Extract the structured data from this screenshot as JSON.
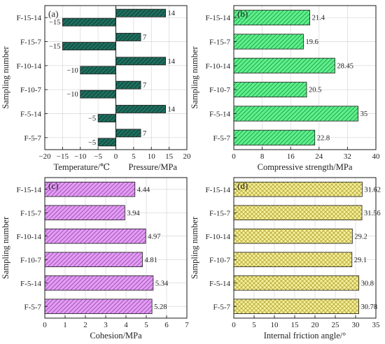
{
  "chart_data": [
    {
      "type": "bar",
      "panel_label": "(a)",
      "orientation": "horizontal",
      "categories": [
        "F-5-7",
        "F-5-14",
        "F-10-7",
        "F-10-14",
        "F-15-7",
        "F-15-14"
      ],
      "series": [
        {
          "name": "Temperature",
          "values": [
            -5,
            -5,
            -10,
            -10,
            -15,
            -15
          ]
        },
        {
          "name": "Pressure",
          "values": [
            7,
            14,
            7,
            14,
            7,
            14
          ]
        }
      ],
      "value_labels": {
        "Temperature": [
          "−5",
          "−5",
          "−10",
          "−10",
          "−15",
          "−15"
        ],
        "Pressure": [
          "7",
          "14",
          "7",
          "14",
          "7",
          "14"
        ]
      },
      "xticks": [
        "−20",
        "−15",
        "−10",
        "−5",
        "0",
        "5",
        "10",
        "15",
        "20"
      ],
      "xlabel_left": "Temperature/℃",
      "xlabel_right": "Pressure/MPa",
      "ylabel": "Sampling number",
      "xlim": [
        -20,
        20
      ],
      "grid": true,
      "colors": {
        "fill": "#1e6e5e",
        "hatch": "#0d3a30"
      }
    },
    {
      "type": "bar",
      "panel_label": "(b)",
      "orientation": "horizontal",
      "categories": [
        "F-5-7",
        "F-5-14",
        "F-10-7",
        "F-10-14",
        "F-15-7",
        "F-15-14"
      ],
      "values": [
        22.8,
        35,
        20.5,
        28.45,
        19.6,
        21.4
      ],
      "value_labels": [
        "22.8",
        "35",
        "20.5",
        "28.45",
        "19.6",
        "21.4"
      ],
      "xticks": [
        "0",
        "8",
        "16",
        "24",
        "32",
        "40"
      ],
      "xlabel": "Compressive strength/MPa",
      "ylabel": "Sampling number",
      "xlim": [
        0,
        40
      ],
      "grid": true,
      "colors": {
        "fill": "#5ef08c",
        "hatch": "#1f9a48"
      }
    },
    {
      "type": "bar",
      "panel_label": "(c)",
      "orientation": "horizontal",
      "categories": [
        "F-5-7",
        "F-5-14",
        "F-10-7",
        "F-10-14",
        "F-15-7",
        "F-15-14"
      ],
      "values": [
        5.28,
        5.34,
        4.81,
        4.97,
        3.94,
        4.44
      ],
      "value_labels": [
        "5.28",
        "5.34",
        "4.81",
        "4.97",
        "3.94",
        "4.44"
      ],
      "xticks": [
        "0",
        "1",
        "2",
        "3",
        "4",
        "5",
        "6",
        "7"
      ],
      "xlabel": "Cohesion/MPa",
      "ylabel": "Sampling number",
      "xlim": [
        0,
        7
      ],
      "grid": true,
      "colors": {
        "fill": "#e39df2",
        "hatch": "#9a4ab8"
      }
    },
    {
      "type": "bar",
      "panel_label": "(d)",
      "orientation": "horizontal",
      "categories": [
        "F-5-7",
        "F-5-14",
        "F-10-7",
        "F-10-14",
        "F-15-7",
        "F-15-14"
      ],
      "values": [
        30.78,
        30.8,
        29.1,
        29.2,
        31.56,
        31.62
      ],
      "value_labels": [
        "30.78",
        "30.8",
        "29.1",
        "29.2",
        "31.56",
        "31.62"
      ],
      "xticks": [
        "0",
        "5",
        "10",
        "15",
        "20",
        "25",
        "30",
        "35"
      ],
      "xlabel": "Internal friction angle/°",
      "ylabel": "Sampling number",
      "xlim": [
        0,
        35
      ],
      "grid": true,
      "colors": {
        "fill": "#f4f09a",
        "hatch": "#b8a83c"
      }
    }
  ]
}
